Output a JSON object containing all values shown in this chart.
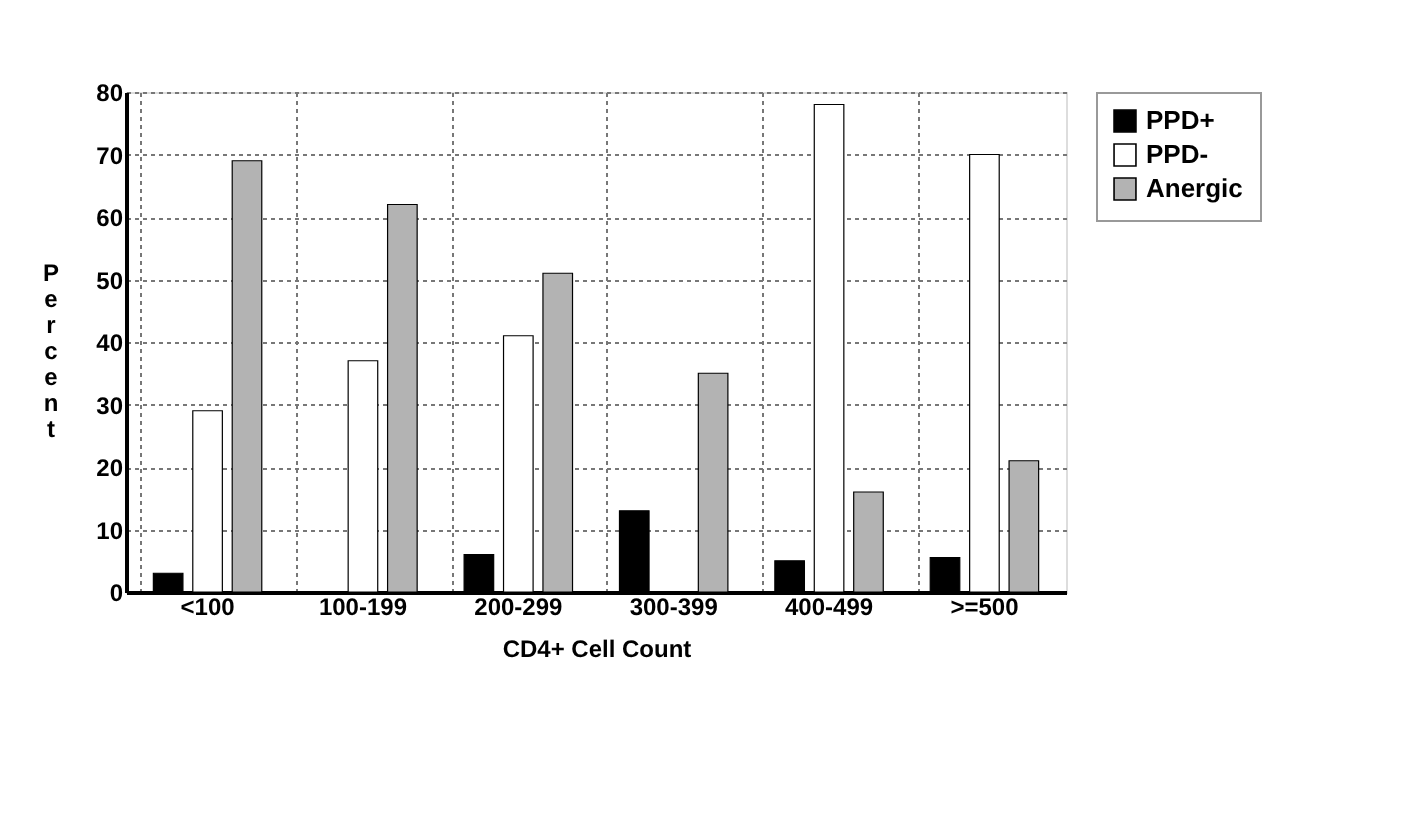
{
  "chart_data": {
    "type": "bar",
    "xlabel": "CD4+ Cell Count",
    "ylabel": "Percent",
    "categories": [
      "<100",
      "100-199",
      "200-299",
      "300-399",
      "400-499",
      ">=500"
    ],
    "series": [
      {
        "name": "PPD+",
        "color": "#000000",
        "values": [
          3,
          0,
          6,
          13,
          5,
          5.5
        ]
      },
      {
        "name": "PPD-",
        "color": "#ffffff",
        "values": [
          29,
          37,
          41,
          0,
          78,
          70
        ]
      },
      {
        "name": "Anergic",
        "color": "#b3b3b3",
        "values": [
          69,
          62,
          51,
          35,
          16,
          21
        ]
      }
    ],
    "ylim": [
      0,
      80
    ],
    "yticks": [
      0,
      10,
      20,
      30,
      40,
      50,
      60,
      70,
      80
    ],
    "grid": true,
    "legend": "right"
  }
}
